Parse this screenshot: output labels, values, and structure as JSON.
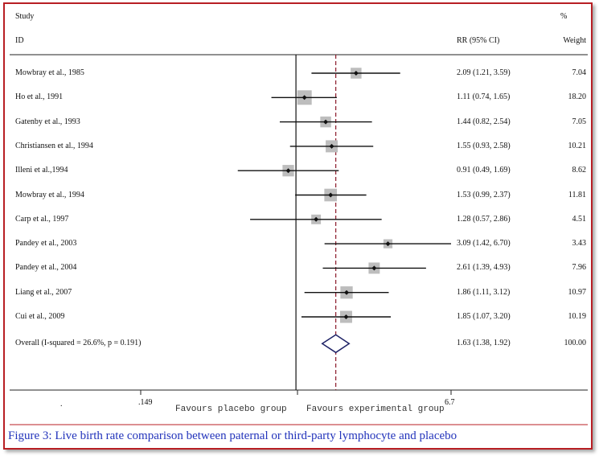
{
  "header": {
    "study": "Study",
    "id": "ID",
    "rr": "RR (95% CI)",
    "pct": "%",
    "weight": "Weight"
  },
  "footer": {
    "tick_left": ".149",
    "tick_right": "6.7",
    "favours_left": "Favours placebo group",
    "favours_right": "Favours experimental group",
    "bottom_left_mark": "."
  },
  "caption": "Figure 3: Live birth rate comparison between paternal or third-party lymphocyte and placebo",
  "colors": {
    "frame": "#b81f24",
    "caption": "#2233bb",
    "overall_line": "#8b1a2b",
    "overall_diamond": "#1e2266",
    "weight_box": "#bdbdbd"
  },
  "chart_data": {
    "type": "forest",
    "measure": "RR",
    "scale": "log",
    "xlim": [
      0.149,
      6.7
    ],
    "null_value": 1,
    "studies": [
      {
        "name": "Mowbray et al., 1985",
        "rr": 2.09,
        "lo": 1.21,
        "hi": 3.59,
        "label": "2.09 (1.21, 3.59)",
        "weight": "7.04"
      },
      {
        "name": "Ho et al., 1991",
        "rr": 1.11,
        "lo": 0.74,
        "hi": 1.65,
        "label": "1.11 (0.74, 1.65)",
        "weight": "18.20"
      },
      {
        "name": "Gatenby et al., 1993",
        "rr": 1.44,
        "lo": 0.82,
        "hi": 2.54,
        "label": "1.44 (0.82, 2.54)",
        "weight": "7.05"
      },
      {
        "name": "Christiansen et al., 1994",
        "rr": 1.55,
        "lo": 0.93,
        "hi": 2.58,
        "label": "1.55 (0.93, 2.58)",
        "weight": "10.21"
      },
      {
        "name": "Illeni et al.,1994",
        "rr": 0.91,
        "lo": 0.49,
        "hi": 1.69,
        "label": "0.91 (0.49, 1.69)",
        "weight": "8.62"
      },
      {
        "name": "Mowbray et al., 1994",
        "rr": 1.53,
        "lo": 0.99,
        "hi": 2.37,
        "label": "1.53 (0.99, 2.37)",
        "weight": "11.81"
      },
      {
        "name": "Carp et al., 1997",
        "rr": 1.28,
        "lo": 0.57,
        "hi": 2.86,
        "label": "1.28 (0.57, 2.86)",
        "weight": "4.51"
      },
      {
        "name": "Pandey et al., 2003",
        "rr": 3.09,
        "lo": 1.42,
        "hi": 6.7,
        "label": "3.09 (1.42, 6.70)",
        "weight": "3.43"
      },
      {
        "name": "Pandey et al., 2004",
        "rr": 2.61,
        "lo": 1.39,
        "hi": 4.93,
        "label": "2.61 (1.39, 4.93)",
        "weight": "7.96"
      },
      {
        "name": "Liang et al., 2007",
        "rr": 1.86,
        "lo": 1.11,
        "hi": 3.12,
        "label": "1.86 (1.11, 3.12)",
        "weight": "10.97"
      },
      {
        "name": "Cui et al., 2009",
        "rr": 1.85,
        "lo": 1.07,
        "hi": 3.2,
        "label": "1.85 (1.07, 3.20)",
        "weight": "10.19"
      }
    ],
    "overall": {
      "name": "Overall  (I-squared = 26.6%, p = 0.191)",
      "rr": 1.63,
      "lo": 1.38,
      "hi": 1.92,
      "label": "1.63 (1.38, 1.92)",
      "weight": "100.00"
    }
  }
}
